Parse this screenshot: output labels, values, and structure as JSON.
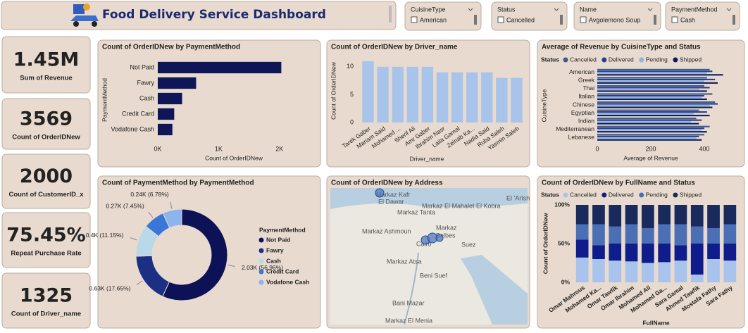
{
  "header": {
    "title": "Food Delivery Service Dashboard"
  },
  "slicers": [
    {
      "label": "CuisineType",
      "option": "American"
    },
    {
      "label": "Status",
      "option": "Cancelled"
    },
    {
      "label": "Name",
      "option": "Avgolemono Soup"
    },
    {
      "label": "PaymentMethod",
      "option": "Cash"
    }
  ],
  "cards": [
    {
      "value": "1.45M",
      "label": "Sum of Revenue"
    },
    {
      "value": "3569",
      "label": "Count of OrderIDNew"
    },
    {
      "value": "2000",
      "label": "Count of CustomerID_x"
    },
    {
      "value": "75.45%",
      "label": "Repeat Purchase Rate"
    },
    {
      "value": "1325",
      "label": "Count of Driver_name"
    }
  ],
  "chart_data": [
    {
      "type": "hbar",
      "title": "Count of OrderIDNew by PaymentMethod",
      "x_label": "Count of OrderIDNew",
      "y_label": "PaymentMethod",
      "categories": [
        "Not Paid",
        "Fawry",
        "Cash",
        "Credit Card",
        "Vodafone Cash"
      ],
      "values": [
        2030,
        630,
        400,
        270,
        240
      ],
      "color": "#0f1657",
      "xlim": [
        0,
        2500
      ],
      "xticks": [
        {
          "value": 0,
          "label": "0K"
        },
        {
          "value": 1000,
          "label": "1K"
        },
        {
          "value": 2000,
          "label": "2K"
        }
      ]
    },
    {
      "type": "bar",
      "title": "Count of OrderIDNew by Driver_name",
      "x_label": "Driver_name",
      "y_label": "Count of OrderIDNew",
      "categories": [
        "Tarek Gaber",
        "Mariam Said",
        "Mohamed ...",
        "Sherif Ali",
        "Amr Gaber",
        "Ibrahim Nasr",
        "Laila Gamal",
        "Zeinab Ka...",
        "Nadia Said",
        "Ruba Saleh",
        "Yasmin Saleh"
      ],
      "values": [
        11,
        10,
        10,
        10,
        10,
        9,
        9,
        9,
        9,
        8,
        8
      ],
      "color": "#a9c4ea",
      "ylim": [
        0,
        12
      ],
      "yticks": [
        0,
        5,
        10
      ]
    },
    {
      "type": "grouped_hbar",
      "title": "Average of Revenue by CuisineType and Status",
      "legend_title": "Status",
      "x_label": "Average of Revenue",
      "y_label": "CuisineType",
      "categories": [
        "American",
        "Greek",
        "Thai",
        "Italian",
        "Chinese",
        "Egyptian",
        "Indian",
        "Mediterranean",
        "Lebanese"
      ],
      "series": [
        {
          "name": "Cancelled",
          "color": "#3d5a8a",
          "values": [
            420,
            410,
            400,
            430,
            440,
            380,
            370,
            420,
            400
          ]
        },
        {
          "name": "Delivered",
          "color": "#23408e",
          "values": [
            430,
            440,
            420,
            400,
            450,
            410,
            390,
            400,
            380
          ]
        },
        {
          "name": "Pending",
          "color": "#8fb2e6",
          "values": [
            410,
            400,
            380,
            390,
            420,
            360,
            350,
            390,
            370
          ]
        },
        {
          "name": "Shipped",
          "color": "#0f1c5a",
          "values": [
            470,
            450,
            410,
            410,
            430,
            420,
            380,
            410,
            390
          ]
        }
      ],
      "xlim": [
        0,
        500
      ],
      "xticks": [
        0,
        200,
        400
      ]
    },
    {
      "type": "donut",
      "title": "Count of PaymentMethod by PaymentMethod",
      "legend_title": "PaymentMethod",
      "categories": [
        "Not Paid",
        "Fawry",
        "Cash",
        "Credit Card",
        "Vodafone Cash"
      ],
      "values": [
        2030,
        630,
        400,
        270,
        240
      ],
      "value_labels": [
        "2.03K (56.96%)",
        "0.63K (17.65%)",
        "0.4K (11.15%)",
        "0.27K (7.45%)",
        "0.24K (6.78%)"
      ],
      "colors": [
        "#0d1257",
        "#1b2f85",
        "#b9d8e8",
        "#3a76d8",
        "#8db4ee"
      ]
    },
    {
      "type": "map",
      "title": "Count of OrderIDNew by Address",
      "places": [
        "Markaz Kafr",
        "El Dawar",
        "Markaz Tanta",
        "Markaz El Mahalet El Kobra",
        "El 'Arîsh",
        "Markaz Ashmoun",
        "Markaz",
        "Belbes",
        "Cairo",
        "Suez",
        "Markaz Atsa",
        "Beni Suef",
        "Bani Mazar",
        "Markaz El Menia"
      ]
    },
    {
      "type": "stacked_column_100",
      "title": "Count of OrderIDNew by FullName and Status",
      "legend_title": "Status",
      "x_label": "FullName",
      "y_label": "Count of OrderIDNew",
      "categories": [
        "Omar Mahrous",
        "Mohamed Ka...",
        "Omar Tawfik",
        "Omar Ibrahim",
        "Mohamed Ali",
        "Mohamed Ga...",
        "Sara Gamal",
        "Ahmed Tawfik",
        "Mostafa Fathy",
        "Sara Fathy"
      ],
      "series": [
        {
          "name": "Cancelled",
          "color": "#a9c4ec",
          "values": [
            32,
            30,
            28,
            27,
            25,
            26,
            28,
            10,
            30,
            28
          ]
        },
        {
          "name": "Delivered",
          "color": "#0f1d8c",
          "values": [
            23,
            18,
            22,
            23,
            25,
            24,
            20,
            40,
            20,
            22
          ]
        },
        {
          "name": "Pending",
          "color": "#4a6fb5",
          "values": [
            20,
            27,
            22,
            25,
            20,
            25,
            27,
            22,
            20,
            25
          ]
        },
        {
          "name": "Shipped",
          "color": "#1a2a5c",
          "values": [
            25,
            25,
            28,
            25,
            30,
            25,
            25,
            28,
            30,
            25
          ]
        }
      ],
      "ylim": [
        0,
        100
      ],
      "yticks": [
        {
          "value": 0,
          "label": "0%"
        },
        {
          "value": 50,
          "label": "50%"
        },
        {
          "value": 100,
          "label": "100%"
        }
      ]
    }
  ]
}
